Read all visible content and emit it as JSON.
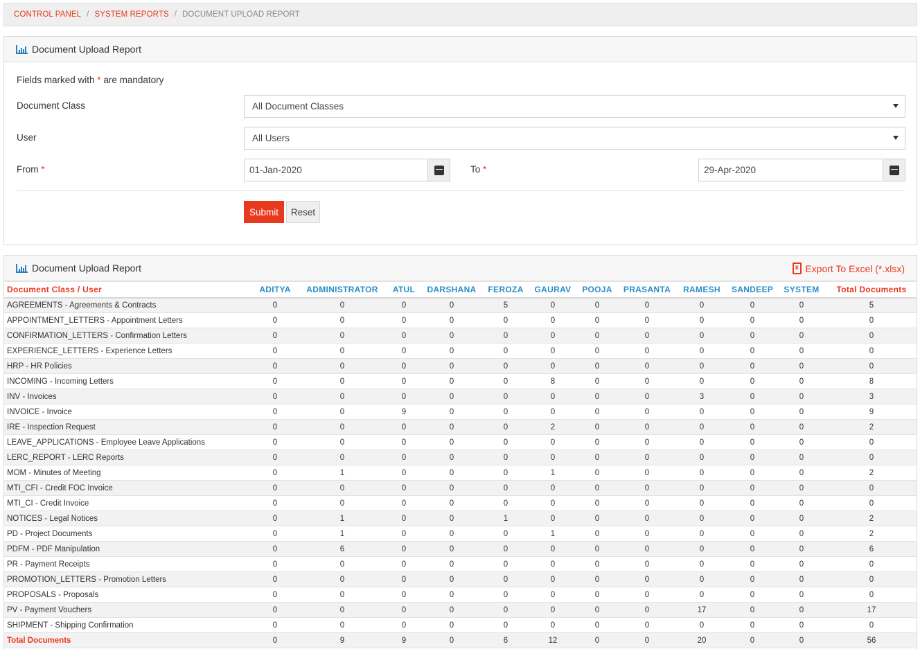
{
  "breadcrumb": {
    "control_panel": "CONTROL PANEL",
    "system_reports": "SYSTEM REPORTS",
    "current": "DOCUMENT UPLOAD REPORT",
    "separator": "/"
  },
  "form": {
    "title": "Document Upload Report",
    "mandatory_pre": "Fields marked with ",
    "mandatory_star": "*",
    "mandatory_post": " are mandatory",
    "document_class_label": "Document Class",
    "document_class_value": "All Document Classes",
    "user_label": "User",
    "user_value": "All Users",
    "from_label": "From",
    "from_value": "01-Jan-2020",
    "to_label": "To",
    "to_value": "29-Apr-2020",
    "required_star": "*",
    "submit_label": "Submit",
    "reset_label": "Reset"
  },
  "report": {
    "title": "Document Upload Report",
    "export_label": "Export To Excel (*.xlsx)",
    "first_header": "Document Class / User",
    "users": [
      "ADITYA",
      "ADMINISTRATOR",
      "ATUL",
      "DARSHANA",
      "FEROZA",
      "GAURAV",
      "POOJA",
      "PRASANTA",
      "RAMESH",
      "SANDEEP",
      "SYSTEM"
    ],
    "total_header": "Total Documents",
    "rows": [
      {
        "name": "AGREEMENTS - Agreements & Contracts",
        "values": [
          0,
          0,
          0,
          0,
          5,
          0,
          0,
          0,
          0,
          0,
          0
        ],
        "total": 5
      },
      {
        "name": "APPOINTMENT_LETTERS - Appointment Letters",
        "values": [
          0,
          0,
          0,
          0,
          0,
          0,
          0,
          0,
          0,
          0,
          0
        ],
        "total": 0
      },
      {
        "name": "CONFIRMATION_LETTERS - Confirmation Letters",
        "values": [
          0,
          0,
          0,
          0,
          0,
          0,
          0,
          0,
          0,
          0,
          0
        ],
        "total": 0
      },
      {
        "name": "EXPERIENCE_LETTERS - Experience Letters",
        "values": [
          0,
          0,
          0,
          0,
          0,
          0,
          0,
          0,
          0,
          0,
          0
        ],
        "total": 0
      },
      {
        "name": "HRP - HR Policies",
        "values": [
          0,
          0,
          0,
          0,
          0,
          0,
          0,
          0,
          0,
          0,
          0
        ],
        "total": 0
      },
      {
        "name": "INCOMING - Incoming Letters",
        "values": [
          0,
          0,
          0,
          0,
          0,
          8,
          0,
          0,
          0,
          0,
          0
        ],
        "total": 8
      },
      {
        "name": "INV - Invoices",
        "values": [
          0,
          0,
          0,
          0,
          0,
          0,
          0,
          0,
          3,
          0,
          0
        ],
        "total": 3
      },
      {
        "name": "INVOICE - Invoice",
        "values": [
          0,
          0,
          9,
          0,
          0,
          0,
          0,
          0,
          0,
          0,
          0
        ],
        "total": 9
      },
      {
        "name": "IRE - Inspection Request",
        "values": [
          0,
          0,
          0,
          0,
          0,
          2,
          0,
          0,
          0,
          0,
          0
        ],
        "total": 2
      },
      {
        "name": "LEAVE_APPLICATIONS - Employee Leave Applications",
        "values": [
          0,
          0,
          0,
          0,
          0,
          0,
          0,
          0,
          0,
          0,
          0
        ],
        "total": 0
      },
      {
        "name": "LERC_REPORT - LERC Reports",
        "values": [
          0,
          0,
          0,
          0,
          0,
          0,
          0,
          0,
          0,
          0,
          0
        ],
        "total": 0
      },
      {
        "name": "MOM - Minutes of Meeting",
        "values": [
          0,
          1,
          0,
          0,
          0,
          1,
          0,
          0,
          0,
          0,
          0
        ],
        "total": 2
      },
      {
        "name": "MTI_CFI - Credit FOC Invoice",
        "values": [
          0,
          0,
          0,
          0,
          0,
          0,
          0,
          0,
          0,
          0,
          0
        ],
        "total": 0
      },
      {
        "name": "MTI_CI - Credit Invoice",
        "values": [
          0,
          0,
          0,
          0,
          0,
          0,
          0,
          0,
          0,
          0,
          0
        ],
        "total": 0
      },
      {
        "name": "NOTICES - Legal Notices",
        "values": [
          0,
          1,
          0,
          0,
          1,
          0,
          0,
          0,
          0,
          0,
          0
        ],
        "total": 2
      },
      {
        "name": "PD - Project Documents",
        "values": [
          0,
          1,
          0,
          0,
          0,
          1,
          0,
          0,
          0,
          0,
          0
        ],
        "total": 2
      },
      {
        "name": "PDFM - PDF Manipulation",
        "values": [
          0,
          6,
          0,
          0,
          0,
          0,
          0,
          0,
          0,
          0,
          0
        ],
        "total": 6
      },
      {
        "name": "PR - Payment Receipts",
        "values": [
          0,
          0,
          0,
          0,
          0,
          0,
          0,
          0,
          0,
          0,
          0
        ],
        "total": 0
      },
      {
        "name": "PROMOTION_LETTERS - Promotion Letters",
        "values": [
          0,
          0,
          0,
          0,
          0,
          0,
          0,
          0,
          0,
          0,
          0
        ],
        "total": 0
      },
      {
        "name": "PROPOSALS - Proposals",
        "values": [
          0,
          0,
          0,
          0,
          0,
          0,
          0,
          0,
          0,
          0,
          0
        ],
        "total": 0
      },
      {
        "name": "PV - Payment Vouchers",
        "values": [
          0,
          0,
          0,
          0,
          0,
          0,
          0,
          0,
          17,
          0,
          0
        ],
        "total": 17
      },
      {
        "name": "SHIPMENT - Shipping Confirmation",
        "values": [
          0,
          0,
          0,
          0,
          0,
          0,
          0,
          0,
          0,
          0,
          0
        ],
        "total": 0
      }
    ],
    "totals_label": "Total Documents",
    "totals": [
      0,
      9,
      9,
      0,
      6,
      12,
      0,
      0,
      20,
      0,
      0
    ],
    "grand_total": 56
  },
  "colors": {
    "accent": "#e8391e",
    "header_blue": "#2a8fc9"
  }
}
